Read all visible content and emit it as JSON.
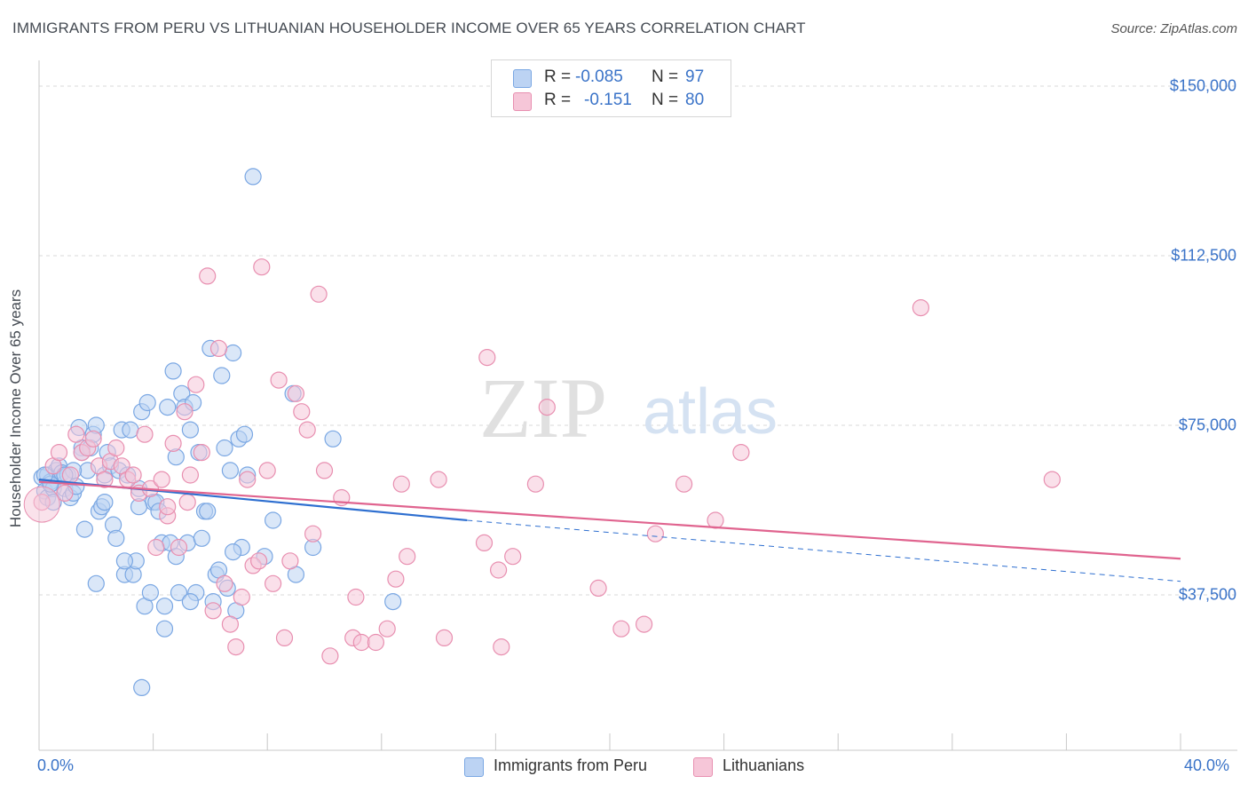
{
  "title": "IMMIGRANTS FROM PERU VS LITHUANIAN HOUSEHOLDER INCOME OVER 65 YEARS CORRELATION CHART",
  "source": "Source: ZipAtlas.com",
  "watermark": {
    "zip": "ZIP",
    "atlas": "atlas"
  },
  "legend": {
    "rows": [
      {
        "r_label": "R =",
        "r_value": "-0.085",
        "n_label": "N =",
        "n_value": "97"
      },
      {
        "r_label": "R =",
        "r_value": "-0.151",
        "n_label": "N =",
        "n_value": "80"
      }
    ]
  },
  "bottom_legend": [
    {
      "label": "Immigrants from Peru"
    },
    {
      "label": "Lithuanians"
    }
  ],
  "axis_text": {
    "ylabel": "Householder Income Over 65 years",
    "y_ticks": [
      "$150,000",
      "$112,500",
      "$75,000",
      "$37,500"
    ],
    "x_min_label": "0.0%",
    "x_max_label": "40.0%"
  },
  "chart_data": {
    "type": "scatter",
    "title": "IMMIGRANTS FROM PERU VS LITHUANIAN HOUSEHOLDER INCOME OVER 65 YEARS CORRELATION CHART",
    "xlabel": "",
    "ylabel": "Householder Income Over 65 years",
    "xlim": [
      0,
      40
    ],
    "ylim": [
      0,
      152000
    ],
    "y_tick_values": [
      37500,
      75000,
      112500,
      150000
    ],
    "x_minor_ticks": [
      0,
      4,
      8,
      12,
      16,
      20,
      24,
      28,
      32,
      36,
      40
    ],
    "grid": "horizontal dashed",
    "legend_position": "top-center",
    "series": [
      {
        "name": "Immigrants from Peru",
        "color": "#7aa7e3",
        "fill": "#bcd3f3",
        "line_color": "#2e6fd0",
        "R": -0.085,
        "N": 97,
        "trend": {
          "x": [
            0,
            15
          ],
          "y": [
            63000,
            54000
          ],
          "dashed_to": [
            40,
            40500
          ]
        },
        "points": [
          [
            0.1,
            63.5
          ],
          [
            0.2,
            60.5
          ],
          [
            0.3,
            59
          ],
          [
            0.3,
            64
          ],
          [
            0.4,
            62.5
          ],
          [
            0.5,
            61
          ],
          [
            0.6,
            65
          ],
          [
            0.7,
            66
          ],
          [
            0.8,
            64.5
          ],
          [
            0.9,
            61
          ],
          [
            1.0,
            64
          ],
          [
            1.1,
            59
          ],
          [
            1.2,
            60
          ],
          [
            1.3,
            61.5
          ],
          [
            1.4,
            74.5
          ],
          [
            1.5,
            70
          ],
          [
            1.6,
            52
          ],
          [
            1.7,
            65
          ],
          [
            1.8,
            70
          ],
          [
            1.9,
            73
          ],
          [
            2.0,
            75
          ],
          [
            2.1,
            56
          ],
          [
            2.2,
            57
          ],
          [
            2.3,
            64
          ],
          [
            2.4,
            69
          ],
          [
            2.5,
            66
          ],
          [
            2.6,
            53
          ],
          [
            2.7,
            50
          ],
          [
            2.8,
            65
          ],
          [
            2.9,
            74
          ],
          [
            3.0,
            42
          ],
          [
            3.1,
            64
          ],
          [
            3.2,
            74
          ],
          [
            3.3,
            42
          ],
          [
            3.4,
            45
          ],
          [
            3.5,
            61
          ],
          [
            3.6,
            78
          ],
          [
            3.7,
            35
          ],
          [
            3.8,
            80
          ],
          [
            3.9,
            38
          ],
          [
            4.0,
            58
          ],
          [
            4.1,
            58
          ],
          [
            4.2,
            56
          ],
          [
            4.3,
            49
          ],
          [
            4.4,
            35
          ],
          [
            4.5,
            79
          ],
          [
            4.6,
            49
          ],
          [
            4.7,
            87
          ],
          [
            4.8,
            68
          ],
          [
            4.9,
            38
          ],
          [
            5.0,
            82
          ],
          [
            5.1,
            79
          ],
          [
            5.2,
            49
          ],
          [
            5.3,
            74
          ],
          [
            5.4,
            80
          ],
          [
            5.5,
            38
          ],
          [
            5.6,
            69
          ],
          [
            5.7,
            50
          ],
          [
            5.8,
            56
          ],
          [
            5.9,
            56
          ],
          [
            6.0,
            92
          ],
          [
            6.1,
            36
          ],
          [
            6.2,
            42
          ],
          [
            6.3,
            43
          ],
          [
            6.4,
            86
          ],
          [
            6.5,
            70
          ],
          [
            6.6,
            39
          ],
          [
            6.7,
            65
          ],
          [
            6.8,
            91
          ],
          [
            6.9,
            34
          ],
          [
            7.0,
            72
          ],
          [
            7.1,
            48
          ],
          [
            7.2,
            73
          ],
          [
            7.3,
            64
          ],
          [
            7.5,
            130
          ],
          [
            7.9,
            46
          ],
          [
            8.2,
            54
          ],
          [
            8.9,
            82
          ],
          [
            9.0,
            42
          ],
          [
            9.6,
            48
          ],
          [
            10.3,
            72
          ],
          [
            12.4,
            36
          ],
          [
            3.6,
            17
          ],
          [
            4.4,
            30
          ],
          [
            2.3,
            58
          ],
          [
            1.2,
            65
          ],
          [
            0.9,
            64
          ],
          [
            0.5,
            58
          ],
          [
            3.0,
            45
          ],
          [
            4.8,
            46
          ],
          [
            5.3,
            36
          ],
          [
            6.8,
            47
          ],
          [
            0.4,
            62
          ],
          [
            2.0,
            40
          ],
          [
            1.5,
            69
          ],
          [
            3.5,
            57
          ],
          [
            0.2,
            64
          ]
        ]
      },
      {
        "name": "Lithuanians",
        "color": "#e88fb0",
        "fill": "#f6c6d8",
        "line_color": "#e0648f",
        "R": -0.151,
        "N": 80,
        "trend": {
          "x": [
            0,
            40
          ],
          "y": [
            62500,
            45500
          ]
        },
        "points": [
          [
            0.1,
            58
          ],
          [
            0.5,
            66
          ],
          [
            0.7,
            69
          ],
          [
            0.9,
            60
          ],
          [
            1.1,
            64
          ],
          [
            1.3,
            73
          ],
          [
            1.5,
            69
          ],
          [
            1.7,
            70
          ],
          [
            1.9,
            72
          ],
          [
            2.1,
            66
          ],
          [
            2.3,
            63
          ],
          [
            2.5,
            67
          ],
          [
            2.7,
            70
          ],
          [
            2.9,
            66
          ],
          [
            3.1,
            63
          ],
          [
            3.3,
            64
          ],
          [
            3.5,
            60
          ],
          [
            3.7,
            73
          ],
          [
            3.9,
            61
          ],
          [
            4.1,
            48
          ],
          [
            4.3,
            63
          ],
          [
            4.5,
            55
          ],
          [
            4.7,
            71
          ],
          [
            4.9,
            48
          ],
          [
            5.1,
            78
          ],
          [
            5.3,
            64
          ],
          [
            5.5,
            84
          ],
          [
            5.7,
            69
          ],
          [
            5.9,
            108
          ],
          [
            6.1,
            34
          ],
          [
            6.3,
            92
          ],
          [
            6.5,
            40
          ],
          [
            6.7,
            31
          ],
          [
            6.9,
            26
          ],
          [
            7.1,
            37
          ],
          [
            7.3,
            63
          ],
          [
            7.5,
            44
          ],
          [
            7.7,
            45
          ],
          [
            7.8,
            110
          ],
          [
            8.0,
            65
          ],
          [
            8.2,
            40
          ],
          [
            8.4,
            85
          ],
          [
            8.6,
            28
          ],
          [
            8.8,
            45
          ],
          [
            9.0,
            82
          ],
          [
            9.2,
            78
          ],
          [
            9.4,
            74
          ],
          [
            9.6,
            51
          ],
          [
            9.8,
            104
          ],
          [
            10.0,
            65
          ],
          [
            10.2,
            24
          ],
          [
            10.6,
            59
          ],
          [
            11.0,
            28
          ],
          [
            11.1,
            37
          ],
          [
            11.3,
            27
          ],
          [
            11.8,
            27
          ],
          [
            12.2,
            30
          ],
          [
            12.5,
            41
          ],
          [
            12.7,
            62
          ],
          [
            12.9,
            46
          ],
          [
            14.0,
            63
          ],
          [
            14.2,
            28
          ],
          [
            15.6,
            49
          ],
          [
            15.7,
            90
          ],
          [
            16.1,
            43
          ],
          [
            16.2,
            26
          ],
          [
            16.6,
            46
          ],
          [
            17.4,
            62
          ],
          [
            17.8,
            79
          ],
          [
            19.6,
            39
          ],
          [
            20.4,
            30
          ],
          [
            21.2,
            31
          ],
          [
            21.6,
            51
          ],
          [
            22.6,
            62
          ],
          [
            23.7,
            54
          ],
          [
            24.6,
            69
          ],
          [
            30.9,
            101
          ],
          [
            35.5,
            63
          ],
          [
            4.5,
            57
          ],
          [
            5.2,
            58
          ]
        ]
      }
    ]
  }
}
